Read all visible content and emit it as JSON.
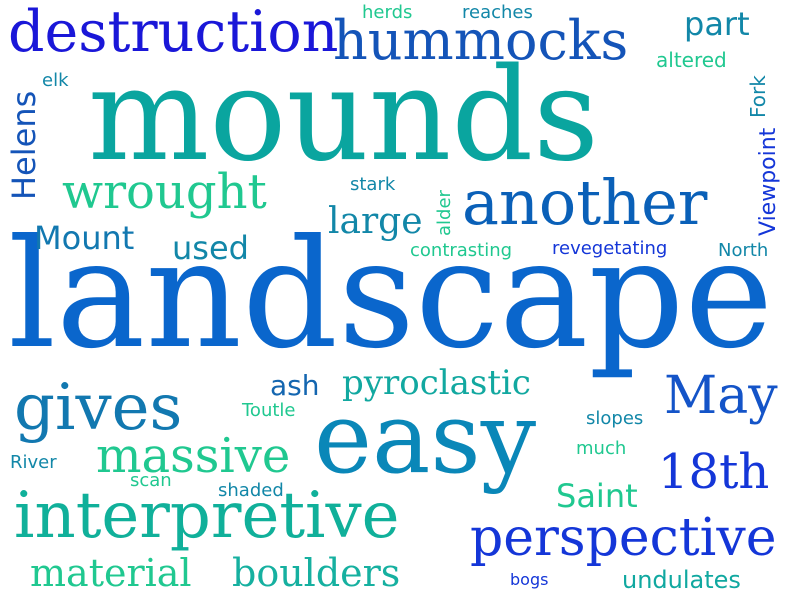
{
  "words": [
    {
      "text": "mounds",
      "color": "#0aa59f"
    },
    {
      "text": "landscape",
      "color": "#0a66cc"
    },
    {
      "text": "easy",
      "color": "#0a87b8"
    },
    {
      "text": "destruction",
      "color": "#1a17d8"
    },
    {
      "text": "hummocks",
      "color": "#1454b8"
    },
    {
      "text": "another",
      "color": "#0a60b8"
    },
    {
      "text": "interpretive",
      "color": "#10b09a"
    },
    {
      "text": "perspective",
      "color": "#1436d8"
    },
    {
      "text": "gives",
      "color": "#1278b0"
    },
    {
      "text": "wrought",
      "color": "#20c890"
    },
    {
      "text": "massive",
      "color": "#20c890"
    },
    {
      "text": "May",
      "color": "#1454c8"
    },
    {
      "text": "18th",
      "color": "#1436d8"
    },
    {
      "text": "material",
      "color": "#20c890"
    },
    {
      "text": "boulders",
      "color": "#16b0a0"
    },
    {
      "text": "pyroclastic",
      "color": "#12a8a0"
    },
    {
      "text": "large",
      "color": "#1287a8"
    },
    {
      "text": "Mount",
      "color": "#1278b0"
    },
    {
      "text": "used",
      "color": "#1287a8"
    },
    {
      "text": "Saint",
      "color": "#20c890"
    },
    {
      "text": "part",
      "color": "#1287a8"
    },
    {
      "text": "ash",
      "color": "#1466b0"
    },
    {
      "text": "undulates",
      "color": "#10a8a0"
    },
    {
      "text": "Helens",
      "color": "#1454b8"
    },
    {
      "text": "Viewpoint",
      "color": "#1436d8"
    },
    {
      "text": "Fork",
      "color": "#1287a8"
    },
    {
      "text": "herds",
      "color": "#20c890"
    },
    {
      "text": "reaches",
      "color": "#1287a8"
    },
    {
      "text": "altered",
      "color": "#20c890"
    },
    {
      "text": "elk",
      "color": "#1287a8"
    },
    {
      "text": "stark",
      "color": "#1287a8"
    },
    {
      "text": "alder",
      "color": "#20c890"
    },
    {
      "text": "contrasting",
      "color": "#20c890"
    },
    {
      "text": "revegetating",
      "color": "#1436d8"
    },
    {
      "text": "North",
      "color": "#1287a8"
    },
    {
      "text": "Toutle",
      "color": "#20c890"
    },
    {
      "text": "slopes",
      "color": "#1287a8"
    },
    {
      "text": "much",
      "color": "#20c890"
    },
    {
      "text": "River",
      "color": "#1287a8"
    },
    {
      "text": "scan",
      "color": "#20c890"
    },
    {
      "text": "shaded",
      "color": "#1287a8"
    },
    {
      "text": "bogs",
      "color": "#1436d8"
    }
  ]
}
